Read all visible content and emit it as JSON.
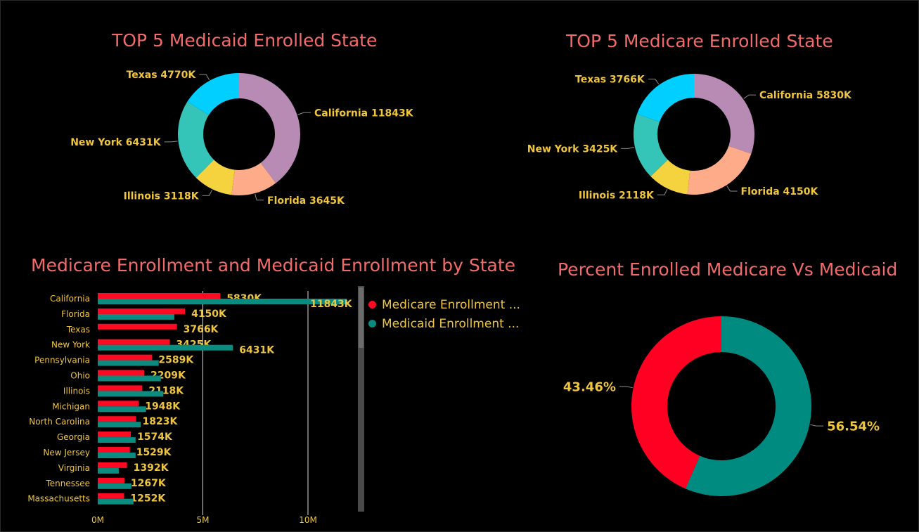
{
  "chart_data": [
    {
      "type": "pie",
      "title": "TOP 5 Medicaid Enrolled State",
      "unit": "K",
      "slices": [
        {
          "label": "California",
          "value": 11843,
          "color": "#b88bb5"
        },
        {
          "label": "Florida",
          "value": 3645,
          "color": "#fdab89"
        },
        {
          "label": "Illinois",
          "value": 3118,
          "color": "#f5d33f"
        },
        {
          "label": "New York",
          "value": 6431,
          "color": "#35c4b8"
        },
        {
          "label": "Texas",
          "value": 4770,
          "color": "#00cfff"
        }
      ]
    },
    {
      "type": "pie",
      "title": "TOP 5 Medicare Enrolled State",
      "unit": "K",
      "slices": [
        {
          "label": "California",
          "value": 5830,
          "color": "#b88bb5"
        },
        {
          "label": "Florida",
          "value": 4150,
          "color": "#fdab89"
        },
        {
          "label": "Illinois",
          "value": 2118,
          "color": "#f5d33f"
        },
        {
          "label": "New York",
          "value": 3425,
          "color": "#35c4b8"
        },
        {
          "label": "Texas",
          "value": 3766,
          "color": "#00cfff"
        }
      ]
    },
    {
      "type": "bar",
      "orientation": "horizontal",
      "title": "Medicare Enrollment and Medicaid Enrollment by State",
      "categories": [
        "California",
        "Florida",
        "Texas",
        "New York",
        "Pennsylvania",
        "Ohio",
        "Illinois",
        "Michigan",
        "North Carolina",
        "Georgia",
        "New Jersey",
        "Virginia",
        "Tennessee",
        "Massachusetts"
      ],
      "series": [
        {
          "name": "Medicare Enrollment ...",
          "color": "#ff0a22",
          "values": [
            5830,
            4150,
            3766,
            3425,
            2589,
            2209,
            2118,
            1948,
            1823,
            1574,
            1529,
            1392,
            1267,
            1252
          ],
          "labels": [
            "5830K",
            "4150K",
            "3766K",
            "3425K",
            "2589K",
            "2209K",
            "2118K",
            "1948K",
            "1823K",
            "1574K",
            "1529K",
            "1392K",
            "1267K",
            "1252K"
          ]
        },
        {
          "name": "Medicaid Enrollment ...",
          "color": "#0a8c80",
          "values": [
            11843,
            3645,
            null,
            6431,
            2900,
            3000,
            3118,
            2300,
            2050,
            1800,
            1800,
            1000,
            1600,
            1700
          ],
          "labels": [
            "11843K",
            null,
            null,
            "6431K",
            null,
            null,
            null,
            null,
            null,
            null,
            null,
            null,
            null,
            null
          ]
        }
      ],
      "xlim": [
        0,
        12000
      ],
      "xticks": [
        {
          "value": 0,
          "label": "0M"
        },
        {
          "value": 5000,
          "label": "5M"
        },
        {
          "value": 10000,
          "label": "10M"
        }
      ],
      "grid": true,
      "legend": "right"
    },
    {
      "type": "pie",
      "title": "Percent Enrolled Medicare Vs Medicaid",
      "slices": [
        {
          "value": 56.54,
          "label": "56.54%",
          "color": "#008b80"
        },
        {
          "value": 43.46,
          "label": "43.46%",
          "color": "#ff0022"
        }
      ]
    }
  ]
}
